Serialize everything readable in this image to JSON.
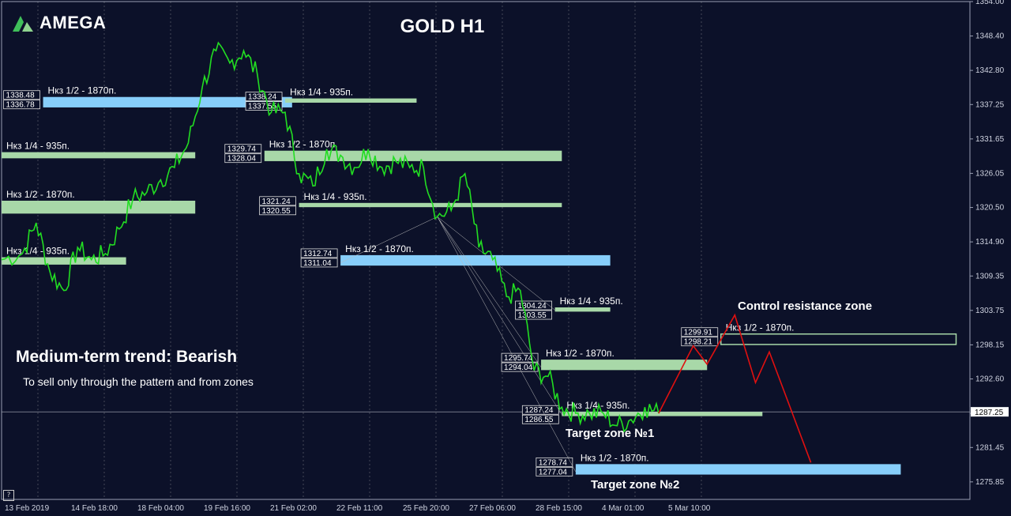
{
  "header": {
    "logo_text": "AMEGA",
    "title": "GOLD H1"
  },
  "annotations": {
    "trend": "Medium-term trend: Bearish",
    "note": "To sell only through the pattern and from zones",
    "control_zone": "Control resistance zone",
    "target1": "Target zone №1",
    "target2": "Target zone №2",
    "help": "?"
  },
  "colors": {
    "background": "#0c1129",
    "candles": "#22dd22",
    "zone_green": "#a8d8a8",
    "zone_blue": "#87cefa",
    "projection": "#e01010",
    "grid": "#c8c8c8",
    "text": "#ffffff"
  },
  "chart_data": {
    "type": "line",
    "symbol": "GOLD",
    "timeframe": "H1",
    "y_ticks": [
      1354.0,
      1348.4,
      1342.8,
      1337.25,
      1331.65,
      1326.05,
      1320.5,
      1314.9,
      1309.35,
      1303.75,
      1298.15,
      1292.6,
      1287.0,
      1281.45,
      1275.85
    ],
    "ylim": [
      1273.0,
      1354.0
    ],
    "x_labels": [
      "13 Feb 2019",
      "14 Feb 18:00",
      "18 Feb 04:00",
      "19 Feb 16:00",
      "21 Feb 02:00",
      "22 Feb 11:00",
      "25 Feb 20:00",
      "27 Feb 06:00",
      "28 Feb 15:00",
      "4 Mar 01:00",
      "5 Mar 10:00"
    ],
    "current_price": "1287.25",
    "price_path": [
      [
        0,
        1312
      ],
      [
        3,
        1313
      ],
      [
        5,
        1318
      ],
      [
        7,
        1310
      ],
      [
        9,
        1307
      ],
      [
        11,
        1314
      ],
      [
        13,
        1312
      ],
      [
        15,
        1313
      ],
      [
        17,
        1317
      ],
      [
        19,
        1322
      ],
      [
        21,
        1323
      ],
      [
        23,
        1325
      ],
      [
        25,
        1327
      ],
      [
        27,
        1331
      ],
      [
        29,
        1340
      ],
      [
        31,
        1346
      ],
      [
        33,
        1344
      ],
      [
        35,
        1346
      ],
      [
        37,
        1342
      ],
      [
        39,
        1336
      ],
      [
        41,
        1336
      ],
      [
        43,
        1326
      ],
      [
        45,
        1324
      ],
      [
        47,
        1330
      ],
      [
        49,
        1329
      ],
      [
        51,
        1327
      ],
      [
        53,
        1330
      ],
      [
        55,
        1327
      ],
      [
        57,
        1328
      ],
      [
        59,
        1327
      ],
      [
        61,
        1327
      ],
      [
        63,
        1319
      ],
      [
        65,
        1320
      ],
      [
        67,
        1326
      ],
      [
        69,
        1314
      ],
      [
        71,
        1312
      ],
      [
        73,
        1306
      ],
      [
        75,
        1307
      ],
      [
        77,
        1294
      ],
      [
        79,
        1293
      ],
      [
        81,
        1288
      ],
      [
        83,
        1287
      ],
      [
        85,
        1287
      ],
      [
        87,
        1287
      ],
      [
        89,
        1285
      ],
      [
        91,
        1286
      ],
      [
        93,
        1288
      ],
      [
        95,
        1287
      ]
    ],
    "projection": [
      [
        95,
        1287
      ],
      [
        100,
        1298
      ],
      [
        102,
        1295
      ],
      [
        106,
        1303
      ],
      [
        109,
        1292
      ],
      [
        111,
        1297
      ],
      [
        117,
        1279
      ]
    ],
    "zones": [
      {
        "label": "Нкз 1/2 - 1870п.",
        "top": "1338.48",
        "bottom": "1336.78",
        "color": "blue",
        "x_start": 6,
        "x_end": 42
      },
      {
        "label": "Нкз 1/4 - 935п.",
        "top": "1338.24",
        "bottom": "1337.55",
        "color": "green",
        "x_start": 41,
        "x_end": 60
      },
      {
        "label": "Нкз 1/4 - 935п.",
        "top": "",
        "bottom": "",
        "color": "green",
        "x_start": 0,
        "x_end": 28
      },
      {
        "label": "Нкз 1/2 - 1870п.",
        "top": "",
        "bottom": "",
        "color": "green",
        "x_start": 0,
        "x_end": 28
      },
      {
        "label": "Нкз 1/4 - 935п.",
        "top": "",
        "bottom": "",
        "color": "green",
        "x_start": 0,
        "x_end": 18
      },
      {
        "label": "Нкз 1/2 - 1870п.",
        "top": "1329.74",
        "bottom": "1328.04",
        "color": "green",
        "x_start": 38,
        "x_end": 81
      },
      {
        "label": "Нкз 1/4 - 935п.",
        "top": "1321.24",
        "bottom": "1320.55",
        "color": "green",
        "x_start": 43,
        "x_end": 81
      },
      {
        "label": "Нкз 1/2 - 1870п.",
        "top": "1312.74",
        "bottom": "1311.04",
        "color": "blue",
        "x_start": 49,
        "x_end": 88
      },
      {
        "label": "Нкз 1/4 - 935п.",
        "top": "1304.24",
        "bottom": "1303.55",
        "color": "green",
        "x_start": 80,
        "x_end": 88
      },
      {
        "label": "Нкз 1/2 - 1870п.",
        "top": "1295.74",
        "bottom": "1294.04",
        "color": "green",
        "x_start": 78,
        "x_end": 102
      },
      {
        "label": "Нкз 1/4 - 935п.",
        "top": "1287.24",
        "bottom": "1286.55",
        "color": "green",
        "x_start": 81,
        "x_end": 110
      },
      {
        "label": "Нкз 1/2 - 1870п.",
        "top": "1299.91",
        "bottom": "1298.21",
        "color": "outline",
        "x_start": 104,
        "x_end": 138
      },
      {
        "label": "Нкз 1/2 - 1870п.",
        "top": "1278.74",
        "bottom": "1277.04",
        "color": "blue",
        "x_start": 83,
        "x_end": 130
      }
    ]
  }
}
